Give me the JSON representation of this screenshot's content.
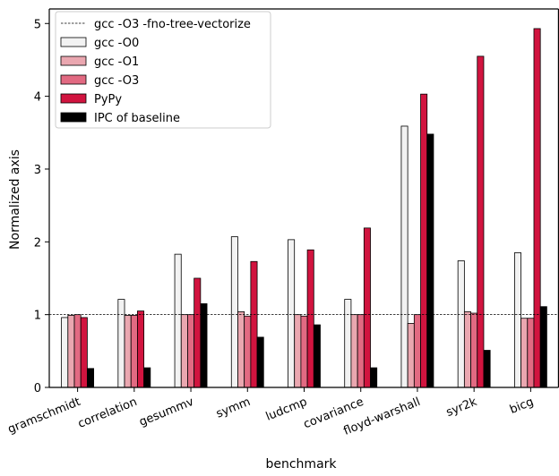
{
  "chart_data": {
    "type": "bar",
    "xlabel": "benchmark",
    "ylabel": "Normalized axis",
    "ylim": [
      0,
      5.2
    ],
    "yticks": [
      0,
      1,
      2,
      3,
      4,
      5
    ],
    "grid": false,
    "legend_position": "top-left",
    "categories": [
      "gramschmidt",
      "correlation",
      "gesummv",
      "symm",
      "ludcmp",
      "covariance",
      "floyd-warshall",
      "syr2k",
      "bicg"
    ],
    "baseline": {
      "name": "gcc -O3 -fno-tree-vectorize",
      "value": 1.0,
      "style": "dashed"
    },
    "series": [
      {
        "name": "gcc -O0",
        "color": "#f2f2f2",
        "values": [
          0.96,
          1.21,
          1.83,
          2.07,
          2.03,
          1.21,
          3.59,
          1.74,
          1.85
        ]
      },
      {
        "name": "gcc -O1",
        "color": "#eaa7b0",
        "values": [
          0.99,
          0.99,
          1.0,
          1.04,
          1.0,
          1.0,
          0.88,
          1.04,
          0.95
        ]
      },
      {
        "name": "gcc -O3",
        "color": "#e26a82",
        "values": [
          1.0,
          0.99,
          1.0,
          0.98,
          0.98,
          1.0,
          1.0,
          1.02,
          0.95
        ]
      },
      {
        "name": "PyPy",
        "color": "#d1143f",
        "values": [
          0.96,
          1.05,
          1.5,
          1.73,
          1.89,
          2.19,
          4.03,
          4.55,
          4.93
        ]
      },
      {
        "name": "IPC of baseline",
        "color": "#000000",
        "values": [
          0.26,
          0.27,
          1.15,
          0.69,
          0.86,
          0.27,
          3.48,
          0.51,
          1.11
        ]
      }
    ]
  }
}
